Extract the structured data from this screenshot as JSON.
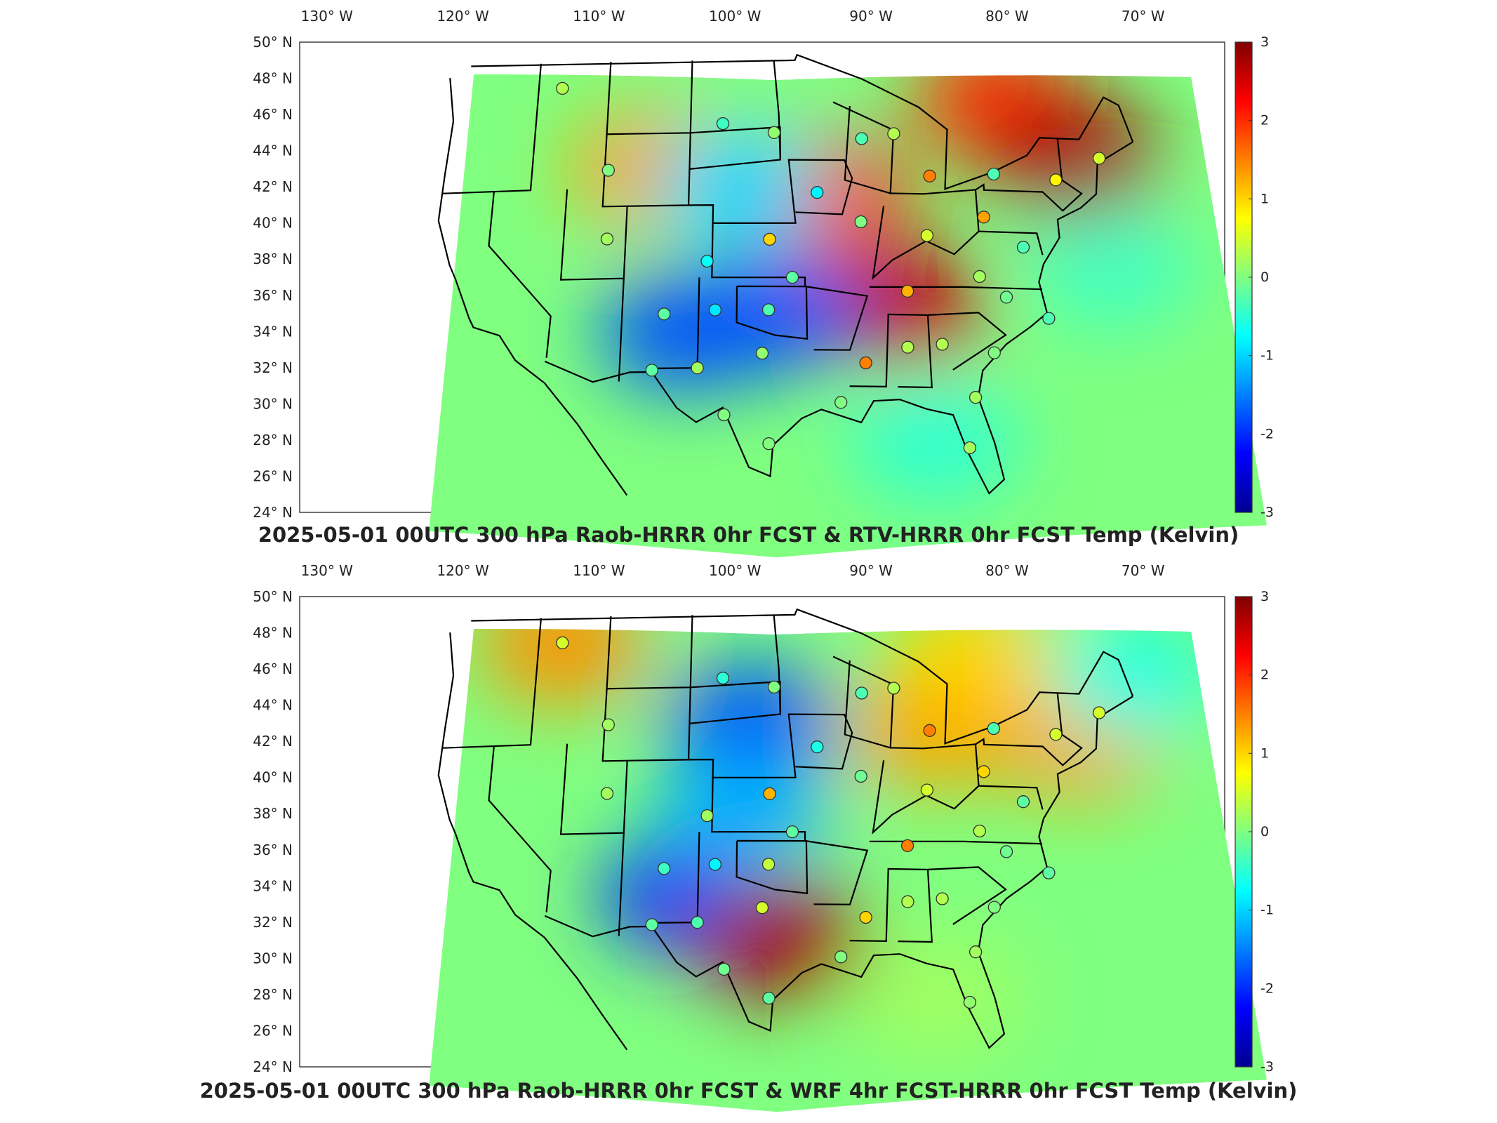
{
  "figure": {
    "panels": [
      {
        "id": "top",
        "title": "2025-05-01 00UTC 300 hPa Raob-HRRR 0hr FCST & RTV-HRRR 0hr FCST Temp (Kelvin)"
      },
      {
        "id": "bottom",
        "title": "2025-05-01 00UTC 300 hPa Raob-HRRR 0hr FCST & WRF 4hr FCST-HRRR 0hr FCST Temp (Kelvin)"
      }
    ],
    "lon_labels": [
      "130",
      "120",
      "110",
      "100",
      "90",
      "80",
      "70"
    ],
    "lon_suffix": "W",
    "lat_labels": [
      "50",
      "48",
      "46",
      "44",
      "42",
      "40",
      "38",
      "36",
      "34",
      "32",
      "30",
      "28",
      "26",
      "24"
    ],
    "lat_suffix": "N",
    "degree_symbol": "°",
    "colorbar": {
      "ticks": [
        "3",
        "2",
        "1",
        "0",
        "-1",
        "-2",
        "-3"
      ],
      "range": [
        -3,
        3
      ],
      "colormap": "jet",
      "colors": [
        "#00008f",
        "#0000ff",
        "#0080ff",
        "#00ffff",
        "#80ff80",
        "#ffff00",
        "#ff8000",
        "#ff0000",
        "#800000"
      ]
    },
    "map": {
      "land_outline_color": "#000000",
      "background": "#ffffff",
      "domain": "HRRR CONUS"
    }
  },
  "chart_data": [
    {
      "type": "heatmap",
      "panel": "top",
      "variable": "Temp difference (K)",
      "xlim": [
        -132,
        -64
      ],
      "ylim": [
        24,
        50
      ],
      "clim": [
        -3,
        3
      ],
      "regions": [
        {
          "lon": -78,
          "lat": 47,
          "value": 2.0
        },
        {
          "lon": -72,
          "lat": 43.8,
          "value": 2.8
        },
        {
          "lon": -87,
          "lat": 35.5,
          "value": 2.6
        },
        {
          "lon": -93,
          "lat": 41.5,
          "value": 2.0
        },
        {
          "lon": -107,
          "lat": 43,
          "value": 1.3
        },
        {
          "lon": -104,
          "lat": 34,
          "value": -1.8
        },
        {
          "lon": -97,
          "lat": 35,
          "value": -1.8
        },
        {
          "lon": -100,
          "lat": 42,
          "value": -1.0
        },
        {
          "lon": -70,
          "lat": 38,
          "value": -0.4
        },
        {
          "lon": -85,
          "lat": 28,
          "value": -0.5
        }
      ],
      "raob_stations": [
        {
          "lon": -115.0,
          "lat": 47.6,
          "value": 0.3
        },
        {
          "lon": -110.7,
          "lat": 43.0,
          "value": 0.0
        },
        {
          "lon": -110.5,
          "lat": 39.2,
          "value": 0.2
        },
        {
          "lon": -101.3,
          "lat": 45.5,
          "value": -0.4
        },
        {
          "lon": -97.0,
          "lat": 45.0,
          "value": 0.1
        },
        {
          "lon": -93.5,
          "lat": 41.7,
          "value": -0.8
        },
        {
          "lon": -89.7,
          "lat": 44.7,
          "value": -0.3
        },
        {
          "lon": -87.0,
          "lat": 45.0,
          "value": 0.3
        },
        {
          "lon": -84.2,
          "lat": 42.7,
          "value": 1.5
        },
        {
          "lon": -78.9,
          "lat": 42.9,
          "value": -0.3
        },
        {
          "lon": -73.8,
          "lat": 42.7,
          "value": 0.8
        },
        {
          "lon": -70.0,
          "lat": 44.0,
          "value": 0.5
        },
        {
          "lon": -97.4,
          "lat": 39.1,
          "value": 1.0
        },
        {
          "lon": -102.4,
          "lat": 37.9,
          "value": -0.7
        },
        {
          "lon": -105.7,
          "lat": 35.0,
          "value": -0.2
        },
        {
          "lon": -101.7,
          "lat": 35.2,
          "value": -0.9
        },
        {
          "lon": -97.5,
          "lat": 35.2,
          "value": -0.3
        },
        {
          "lon": -98.0,
          "lat": 32.8,
          "value": 0.1
        },
        {
          "lon": -95.6,
          "lat": 37.0,
          "value": -0.2
        },
        {
          "lon": -90.0,
          "lat": 40.1,
          "value": 0.0
        },
        {
          "lon": -84.7,
          "lat": 39.4,
          "value": 0.5
        },
        {
          "lon": -80.0,
          "lat": 40.5,
          "value": 1.3
        },
        {
          "lon": -77.0,
          "lat": 38.9,
          "value": -0.3
        },
        {
          "lon": -86.5,
          "lat": 36.3,
          "value": 1.2
        },
        {
          "lon": -80.7,
          "lat": 37.2,
          "value": 0.2
        },
        {
          "lon": -78.7,
          "lat": 36.1,
          "value": -0.1
        },
        {
          "lon": -75.5,
          "lat": 35.0,
          "value": -0.3
        },
        {
          "lon": -90.0,
          "lat": 32.3,
          "value": 1.5
        },
        {
          "lon": -86.7,
          "lat": 33.2,
          "value": 0.3
        },
        {
          "lon": -84.0,
          "lat": 33.4,
          "value": 0.3
        },
        {
          "lon": -80.0,
          "lat": 33.0,
          "value": 0.0
        },
        {
          "lon": -81.7,
          "lat": 30.5,
          "value": 0.2
        },
        {
          "lon": -92.0,
          "lat": 30.1,
          "value": 0.0
        },
        {
          "lon": -97.5,
          "lat": 27.8,
          "value": 0.0
        },
        {
          "lon": -100.9,
          "lat": 29.4,
          "value": 0.0
        },
        {
          "lon": -106.5,
          "lat": 31.9,
          "value": -0.2
        },
        {
          "lon": -103.0,
          "lat": 32.0,
          "value": 0.2
        },
        {
          "lon": -82.4,
          "lat": 27.7,
          "value": 0.2
        }
      ]
    },
    {
      "type": "heatmap",
      "panel": "bottom",
      "variable": "Temp difference (K)",
      "xlim": [
        -132,
        -64
      ],
      "ylim": [
        24,
        50
      ],
      "clim": [
        -3,
        3
      ],
      "regions": [
        {
          "lon": -99,
          "lat": 43,
          "value": -1.8
        },
        {
          "lon": -104,
          "lat": 33.5,
          "value": -2.0
        },
        {
          "lon": -99.5,
          "lat": 38,
          "value": -1.2
        },
        {
          "lon": -96.5,
          "lat": 31,
          "value": 2.8
        },
        {
          "lon": -84,
          "lat": 42.8,
          "value": 1.3
        },
        {
          "lon": -72,
          "lat": 42.5,
          "value": 1.3
        },
        {
          "lon": -115,
          "lat": 47.5,
          "value": 1.4
        },
        {
          "lon": -80,
          "lat": 47,
          "value": 1.0
        },
        {
          "lon": -67,
          "lat": 46,
          "value": -0.6
        },
        {
          "lon": -85,
          "lat": 28,
          "value": 0.2
        }
      ],
      "raob_stations": [
        {
          "lon": -115.0,
          "lat": 47.6,
          "value": 0.5
        },
        {
          "lon": -110.7,
          "lat": 43.0,
          "value": 0.2
        },
        {
          "lon": -110.5,
          "lat": 39.2,
          "value": 0.2
        },
        {
          "lon": -101.3,
          "lat": 45.5,
          "value": -0.5
        },
        {
          "lon": -97.0,
          "lat": 45.0,
          "value": 0.0
        },
        {
          "lon": -93.5,
          "lat": 41.7,
          "value": -0.6
        },
        {
          "lon": -89.7,
          "lat": 44.7,
          "value": -0.3
        },
        {
          "lon": -87.0,
          "lat": 45.0,
          "value": 0.3
        },
        {
          "lon": -84.2,
          "lat": 42.7,
          "value": 1.5
        },
        {
          "lon": -78.9,
          "lat": 42.9,
          "value": -0.3
        },
        {
          "lon": -73.8,
          "lat": 42.7,
          "value": 0.5
        },
        {
          "lon": -70.0,
          "lat": 44.0,
          "value": 0.5
        },
        {
          "lon": -97.4,
          "lat": 39.1,
          "value": 1.2
        },
        {
          "lon": -102.4,
          "lat": 37.9,
          "value": 0.2
        },
        {
          "lon": -105.7,
          "lat": 35.0,
          "value": -0.4
        },
        {
          "lon": -101.7,
          "lat": 35.2,
          "value": -0.8
        },
        {
          "lon": -97.5,
          "lat": 35.2,
          "value": 0.4
        },
        {
          "lon": -98.0,
          "lat": 32.8,
          "value": 0.5
        },
        {
          "lon": -95.6,
          "lat": 37.0,
          "value": -0.2
        },
        {
          "lon": -90.0,
          "lat": 40.1,
          "value": -0.1
        },
        {
          "lon": -84.7,
          "lat": 39.4,
          "value": 0.5
        },
        {
          "lon": -80.0,
          "lat": 40.5,
          "value": 1.0
        },
        {
          "lon": -77.0,
          "lat": 38.9,
          "value": -0.2
        },
        {
          "lon": -86.5,
          "lat": 36.3,
          "value": 1.5
        },
        {
          "lon": -80.7,
          "lat": 37.2,
          "value": 0.3
        },
        {
          "lon": -78.7,
          "lat": 36.1,
          "value": -0.1
        },
        {
          "lon": -75.5,
          "lat": 35.0,
          "value": -0.2
        },
        {
          "lon": -90.0,
          "lat": 32.3,
          "value": 1.0
        },
        {
          "lon": -86.7,
          "lat": 33.2,
          "value": 0.3
        },
        {
          "lon": -84.0,
          "lat": 33.4,
          "value": 0.3
        },
        {
          "lon": -80.0,
          "lat": 33.0,
          "value": 0.0
        },
        {
          "lon": -81.7,
          "lat": 30.5,
          "value": 0.2
        },
        {
          "lon": -92.0,
          "lat": 30.1,
          "value": 0.0
        },
        {
          "lon": -97.5,
          "lat": 27.8,
          "value": -0.2
        },
        {
          "lon": -100.9,
          "lat": 29.4,
          "value": -0.1
        },
        {
          "lon": -106.5,
          "lat": 31.9,
          "value": -0.2
        },
        {
          "lon": -103.0,
          "lat": 32.0,
          "value": -0.3
        },
        {
          "lon": -82.4,
          "lat": 27.7,
          "value": 0.1
        }
      ]
    }
  ]
}
